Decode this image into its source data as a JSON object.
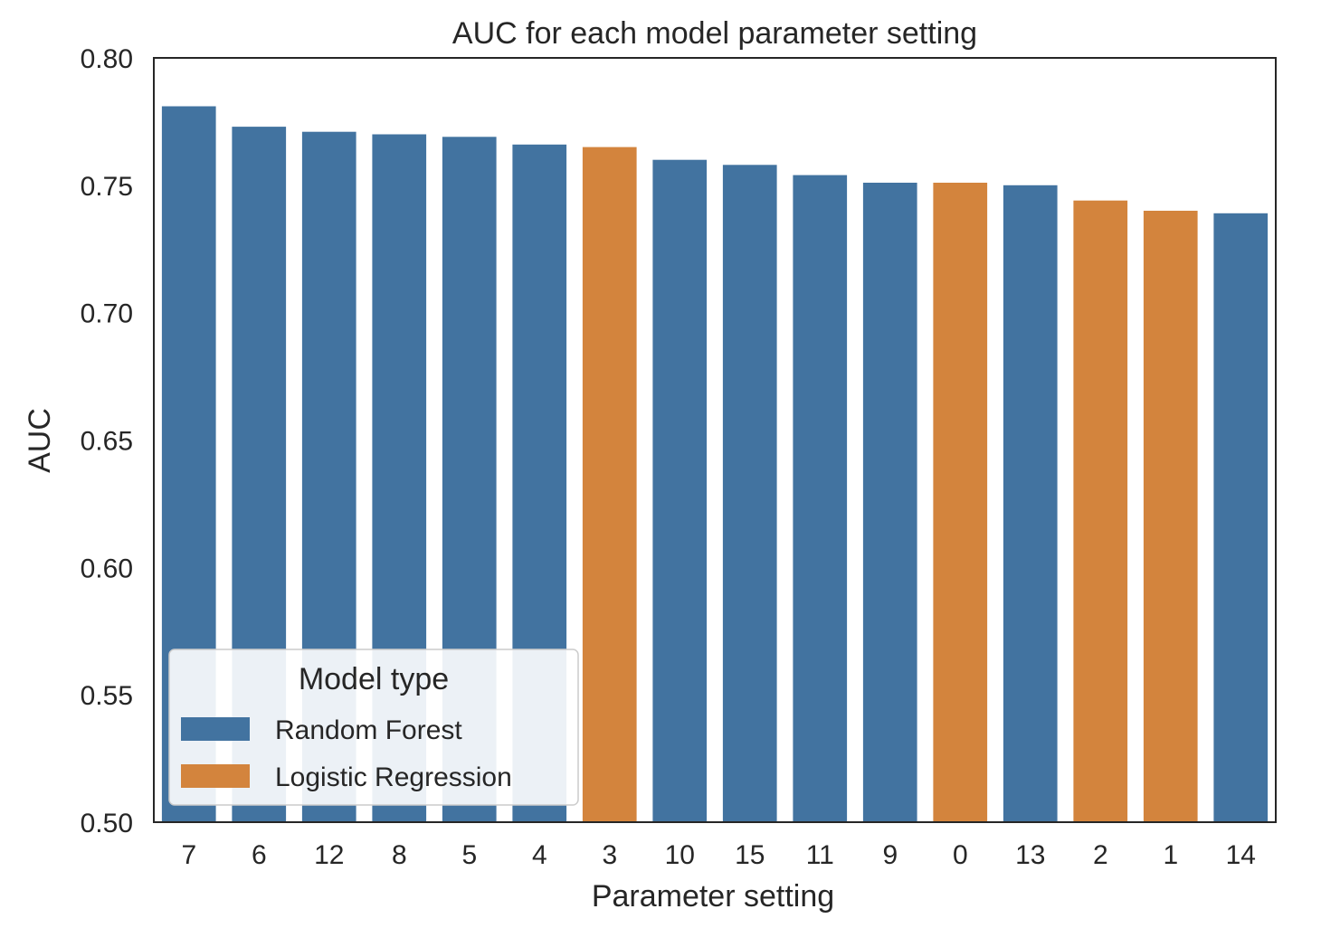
{
  "chart_data": {
    "type": "bar",
    "title": "AUC for each model parameter setting",
    "xlabel": "Parameter setting",
    "ylabel": "AUC",
    "ylim": [
      0.5,
      0.8
    ],
    "yticks": [
      "0.50",
      "0.55",
      "0.60",
      "0.65",
      "0.70",
      "0.75",
      "0.80"
    ],
    "grid": false,
    "categories": [
      "7",
      "6",
      "12",
      "8",
      "5",
      "4",
      "3",
      "10",
      "15",
      "11",
      "9",
      "0",
      "13",
      "2",
      "1",
      "14"
    ],
    "values": [
      0.781,
      0.773,
      0.771,
      0.77,
      0.769,
      0.766,
      0.765,
      0.76,
      0.758,
      0.754,
      0.751,
      0.751,
      0.75,
      0.744,
      0.74,
      0.739
    ],
    "model_type": [
      "Random Forest",
      "Random Forest",
      "Random Forest",
      "Random Forest",
      "Random Forest",
      "Random Forest",
      "Logistic Regression",
      "Random Forest",
      "Random Forest",
      "Random Forest",
      "Random Forest",
      "Logistic Regression",
      "Random Forest",
      "Logistic Regression",
      "Logistic Regression",
      "Random Forest"
    ],
    "legend": {
      "title": "Model type",
      "placement": "lower-left",
      "entries": [
        {
          "label": "Random Forest",
          "color": "#4273a0"
        },
        {
          "label": "Logistic Regression",
          "color": "#d3843d"
        }
      ]
    }
  }
}
